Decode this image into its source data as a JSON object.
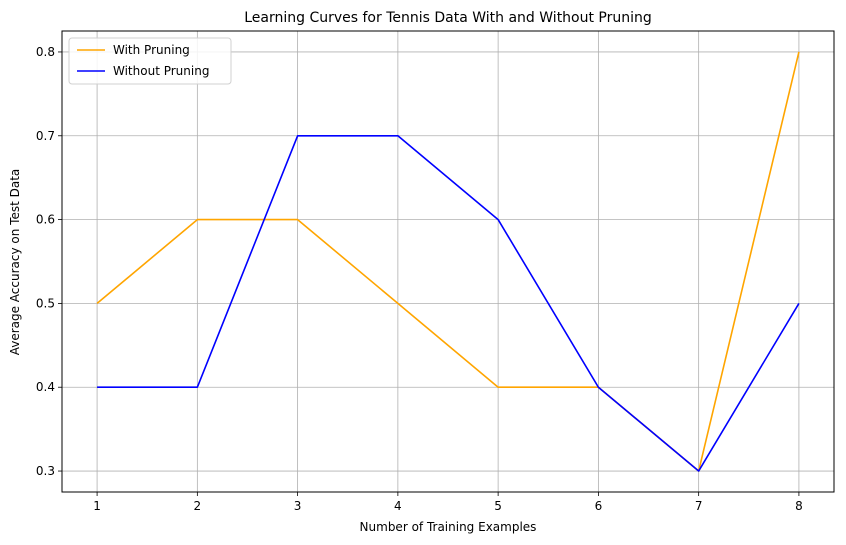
{
  "chart_data": {
    "type": "line",
    "title": "Learning Curves for Tennis Data With and Without Pruning",
    "xlabel": "Number of Training Examples",
    "ylabel": "Average Accuracy on Test Data",
    "x": [
      1,
      2,
      3,
      4,
      5,
      6,
      7,
      8
    ],
    "x_ticks": [
      "1",
      "2",
      "3",
      "4",
      "5",
      "6",
      "7",
      "8"
    ],
    "y_ticks": [
      "0.3",
      "0.4",
      "0.5",
      "0.6",
      "0.7",
      "0.8"
    ],
    "xlim": [
      0.65,
      8.35
    ],
    "ylim": [
      0.275,
      0.825
    ],
    "grid": true,
    "legend_position": "top-left",
    "series": [
      {
        "name": "With Pruning",
        "color": "#ffa500",
        "values": [
          0.5,
          0.6,
          0.6,
          0.5,
          0.4,
          0.4,
          0.3,
          0.8
        ]
      },
      {
        "name": "Without Pruning",
        "color": "#0000ff",
        "values": [
          0.4,
          0.4,
          0.7,
          0.7,
          0.6,
          0.4,
          0.3,
          0.5
        ]
      }
    ]
  }
}
